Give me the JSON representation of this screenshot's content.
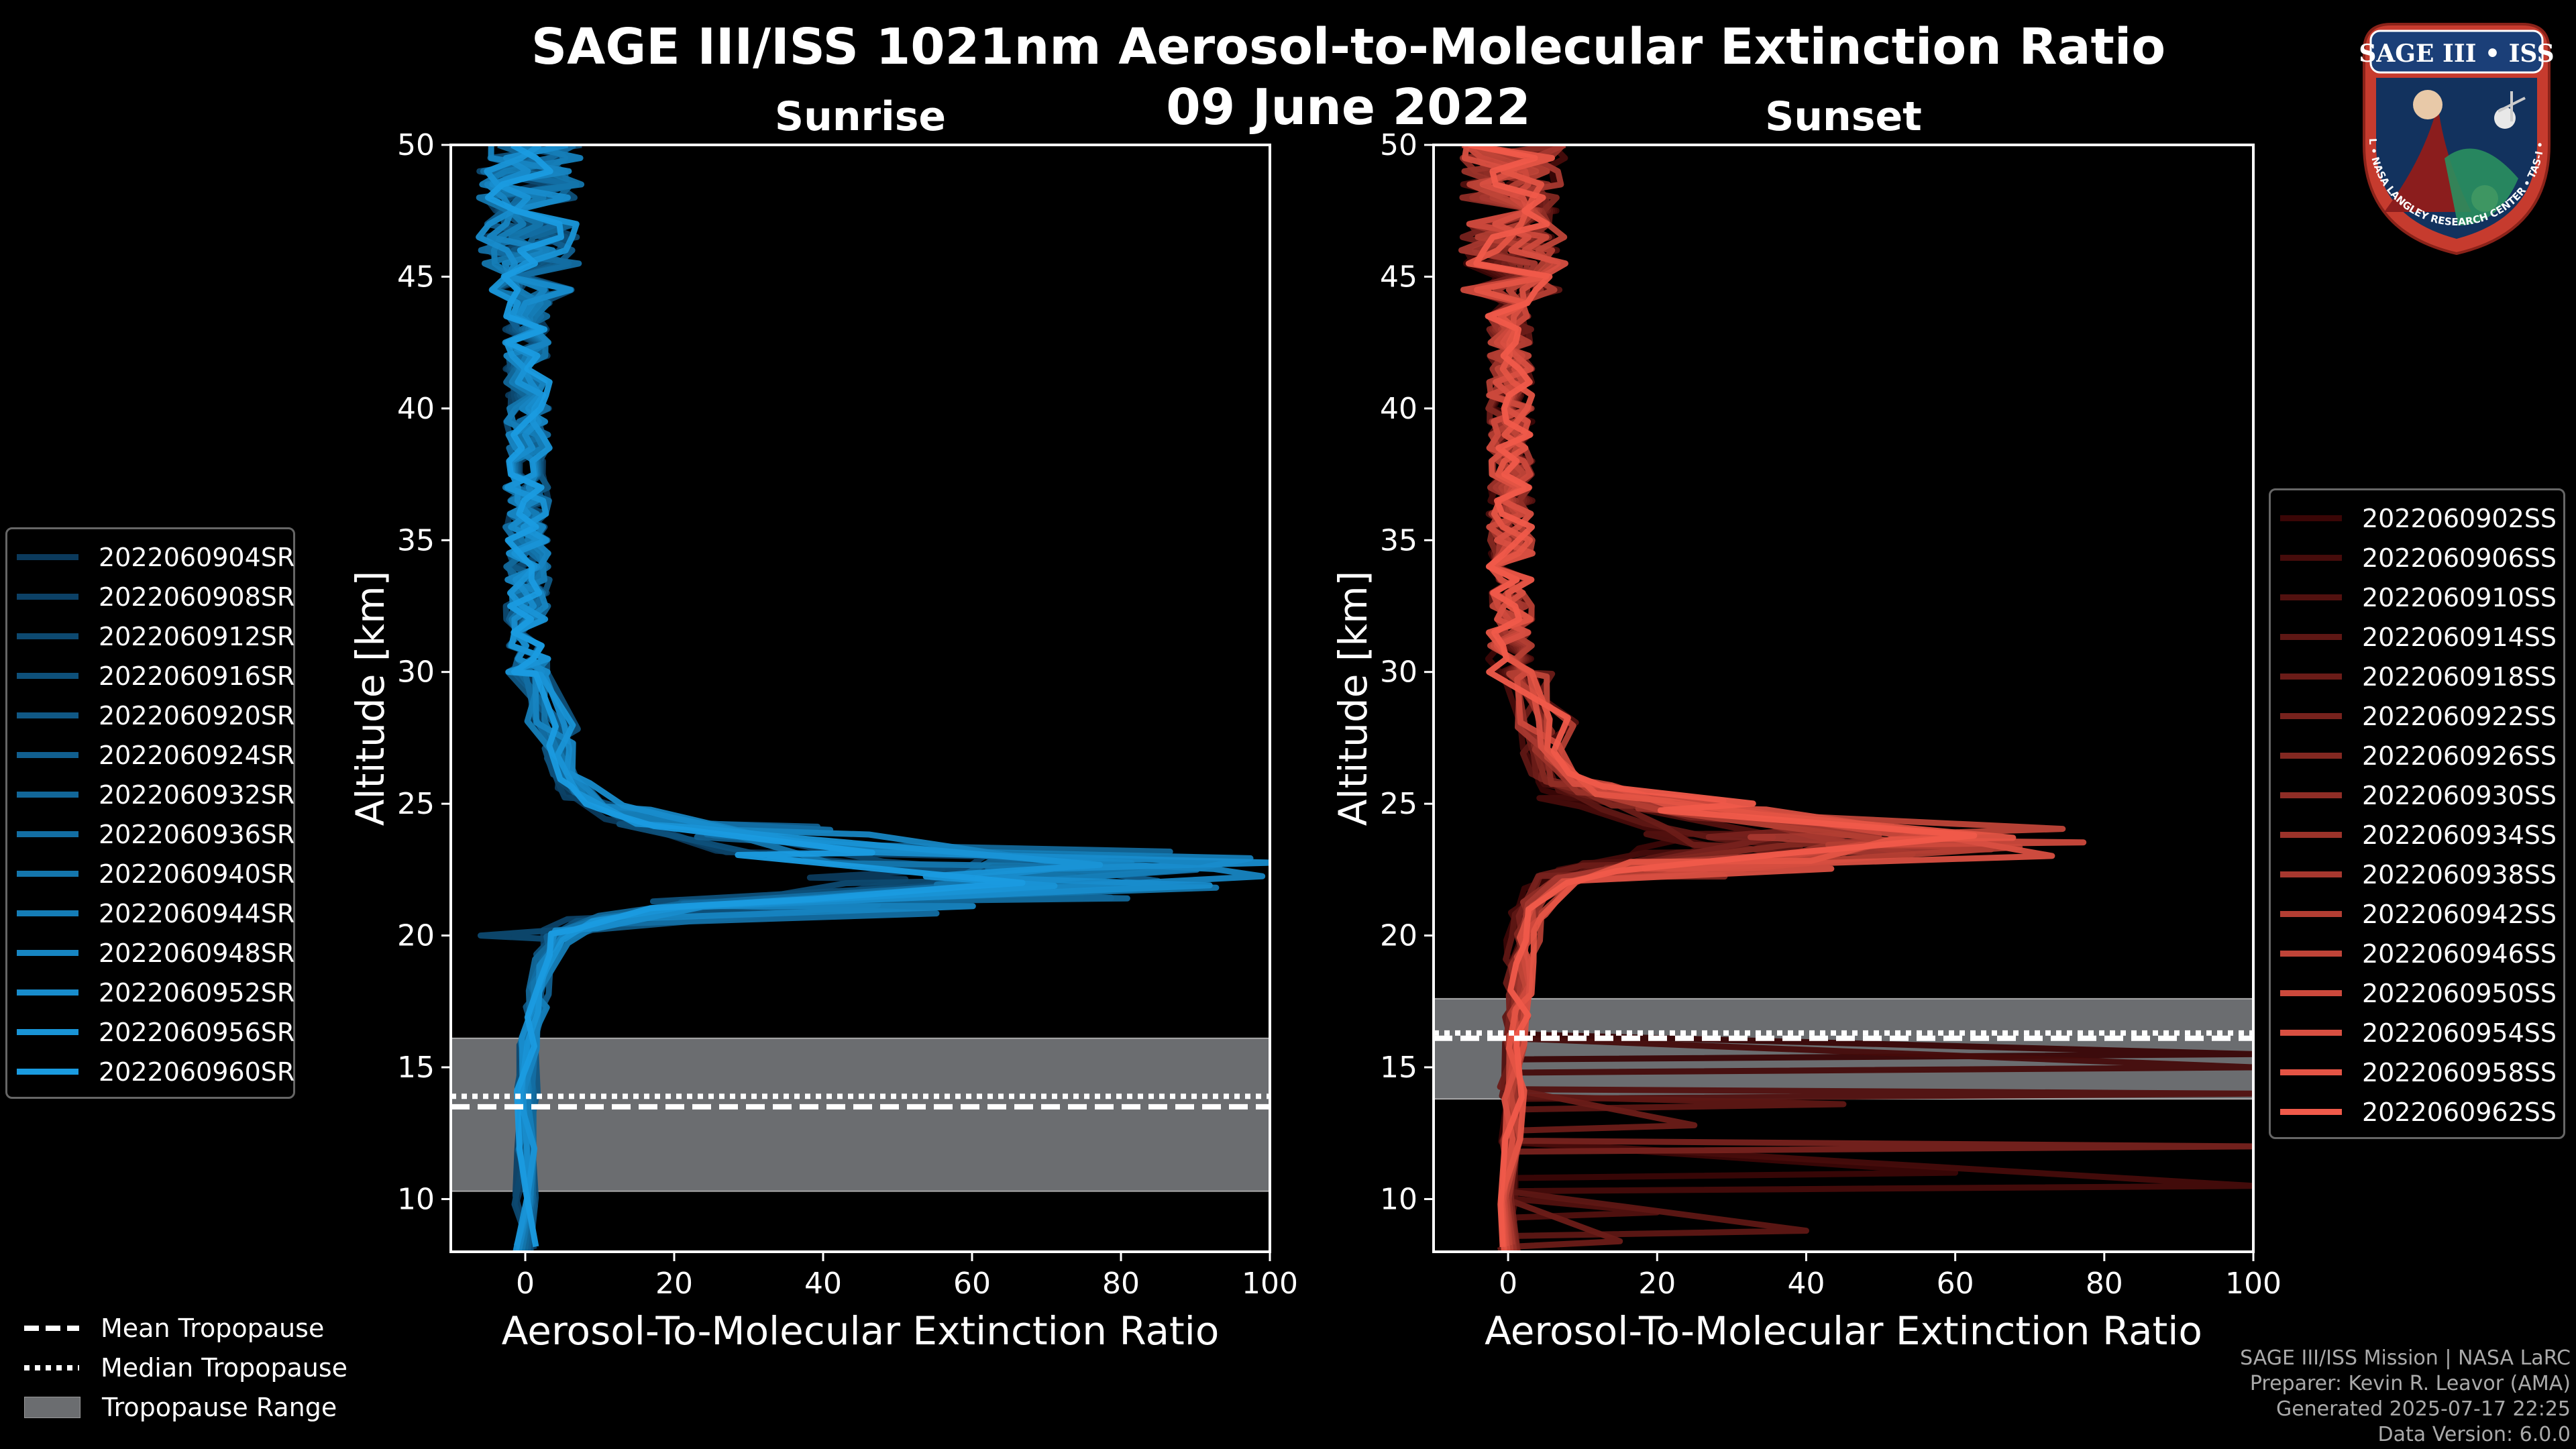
{
  "title": "SAGE III/ISS 1021nm Aerosol-to-Molecular Extinction Ratio",
  "date": "09 June 2022",
  "logo": {
    "text": "SAGE III • ISS",
    "ring_text": "BALL • NASA LANGLEY RESEARCH CENTER • TAS-I • ESA"
  },
  "credits": [
    "SAGE III/ISS Mission | NASA LaRC",
    "Preparer: Kevin R. Leavor (AMA)",
    "Generated 2025-07-17 22:25",
    "Data Version: 6.0.0"
  ],
  "tropopause_legend": {
    "mean": "Mean Tropopause",
    "median": "Median Tropopause",
    "range": "Tropopause Range"
  },
  "colors": {
    "sunrise_dark": "#0b3a5c",
    "sunrise_light": "#1a9be0",
    "sunset_dark": "#3a0606",
    "sunset_light": "#f05a4a",
    "tropopause_range": "#6b6d70"
  },
  "chart_data": [
    {
      "type": "line",
      "title": "Sunrise",
      "xlabel": "Aerosol-To-Molecular Extinction Ratio",
      "ylabel": "Altitude [km]",
      "xlim": [
        -10,
        100
      ],
      "ylim": [
        8,
        50
      ],
      "xticks": [
        0,
        20,
        40,
        60,
        80,
        100
      ],
      "yticks": [
        10,
        15,
        20,
        25,
        30,
        35,
        40,
        45,
        50
      ],
      "tropopause": {
        "range": [
          10.3,
          16.1
        ],
        "mean": 13.5,
        "median": 13.9
      },
      "legend": [
        "2022060904SR",
        "2022060908SR",
        "2022060912SR",
        "2022060916SR",
        "2022060920SR",
        "2022060924SR",
        "2022060932SR",
        "2022060936SR",
        "2022060940SR",
        "2022060944SR",
        "2022060948SR",
        "2022060952SR",
        "2022060956SR",
        "2022060960SR"
      ],
      "peak_altitude_km": 22.5,
      "peak_values": [
        55,
        62,
        70,
        74,
        80,
        85,
        88,
        90,
        94,
        97,
        100,
        100,
        78,
        66
      ],
      "low_deviation_km": 20.0,
      "series_template": {
        "altitudes": [
          8,
          10,
          12,
          14,
          16,
          17,
          18,
          19,
          20,
          20.5,
          21,
          21.5,
          22,
          22.5,
          23,
          23.5,
          24,
          24.5,
          25,
          25.5,
          26,
          27,
          28,
          30,
          32,
          34,
          36,
          38,
          40,
          42,
          44,
          46,
          48,
          50
        ],
        "shape": [
          0,
          0,
          0.2,
          0.5,
          1,
          1.5,
          2,
          3,
          5,
          10,
          25,
          60,
          92,
          100,
          70,
          45,
          28,
          18,
          12,
          9,
          7,
          5,
          3.5,
          2,
          1.5,
          1,
          0.8,
          0.6,
          0.5,
          0.4,
          0.4,
          0.4,
          0.4,
          0.4
        ]
      }
    },
    {
      "type": "line",
      "title": "Sunset",
      "xlabel": "Aerosol-To-Molecular Extinction Ratio",
      "ylabel": "Altitude [km]",
      "xlim": [
        -10,
        100
      ],
      "ylim": [
        8,
        50
      ],
      "xticks": [
        0,
        20,
        40,
        60,
        80,
        100
      ],
      "yticks": [
        10,
        15,
        20,
        25,
        30,
        35,
        40,
        45,
        50
      ],
      "tropopause": {
        "range": [
          13.8,
          17.6
        ],
        "mean": 16.1,
        "median": 16.3
      },
      "legend": [
        "2022060902SS",
        "2022060906SS",
        "2022060910SS",
        "2022060914SS",
        "2022060918SS",
        "2022060922SS",
        "2022060926SS",
        "2022060930SS",
        "2022060934SS",
        "2022060938SS",
        "2022060942SS",
        "2022060946SS",
        "2022060950SS",
        "2022060954SS",
        "2022060958SS",
        "2022060962SS"
      ],
      "peak_altitude_km": 23.5,
      "peak_values": [
        25,
        30,
        35,
        38,
        42,
        46,
        50,
        55,
        60,
        65,
        70,
        74,
        78,
        72,
        68,
        64
      ],
      "low_spikes": [
        {
          "alt": 15.5,
          "value": 100
        },
        {
          "alt": 15.0,
          "value": 100
        },
        {
          "alt": 14.0,
          "value": 100
        },
        {
          "alt": 13.6,
          "value": 45
        },
        {
          "alt": 12.8,
          "value": 25
        },
        {
          "alt": 12.0,
          "value": 100
        },
        {
          "alt": 11.0,
          "value": 60
        },
        {
          "alt": 10.5,
          "value": 100
        },
        {
          "alt": 9.5,
          "value": 20
        },
        {
          "alt": 8.8,
          "value": 40
        },
        {
          "alt": 8.4,
          "value": 15
        }
      ],
      "series_template": {
        "altitudes": [
          8,
          10,
          12,
          14,
          16,
          17,
          18,
          19,
          20,
          21,
          22,
          22.5,
          23,
          23.5,
          24,
          24.5,
          25,
          25.5,
          26,
          27,
          28,
          30,
          32,
          34,
          36,
          38,
          40,
          42,
          44,
          46,
          48,
          50
        ],
        "shape": [
          0,
          0,
          0.5,
          1,
          1.5,
          2,
          2.5,
          3,
          4,
          6,
          12,
          25,
          60,
          100,
          75,
          50,
          30,
          18,
          12,
          8,
          5,
          3,
          2,
          1.5,
          1.2,
          1,
          1,
          1,
          1,
          1,
          1,
          1
        ]
      }
    }
  ]
}
